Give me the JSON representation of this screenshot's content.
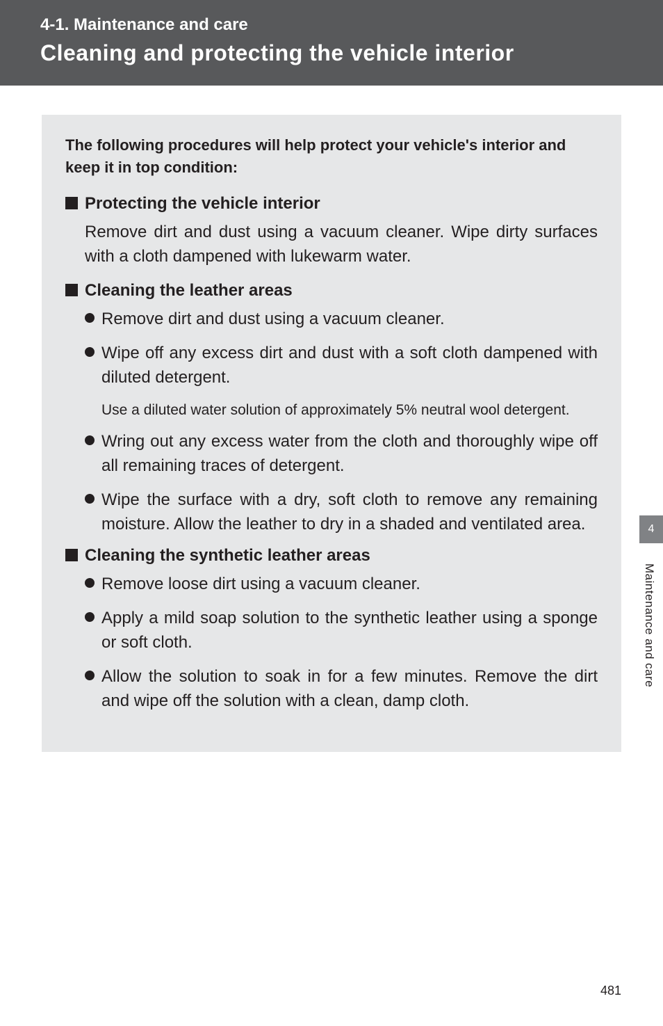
{
  "header": {
    "section_label": "4-1. Maintenance and care",
    "chapter_title": "Cleaning and protecting the vehicle interior"
  },
  "content": {
    "intro": "The following procedures will help protect your vehicle's interior and keep it in top condition:",
    "sections": [
      {
        "title": "Protecting the vehicle interior",
        "body": "Remove dirt and dust using a vacuum cleaner. Wipe dirty surfaces with a cloth dampened with lukewarm water."
      },
      {
        "title": "Cleaning the leather areas",
        "bullets": [
          {
            "text": "Remove dirt and dust using a vacuum cleaner."
          },
          {
            "text": "Wipe off any excess dirt and dust with a soft cloth dampened with diluted detergent.",
            "note": "Use a diluted water solution of approximately 5% neutral wool detergent."
          },
          {
            "text": "Wring out any excess water from the cloth and thoroughly wipe off all remaining traces of detergent."
          },
          {
            "text": "Wipe the surface with a dry, soft cloth to remove any remaining moisture. Allow the leather to dry in a shaded and ventilated area."
          }
        ]
      },
      {
        "title": "Cleaning the synthetic leather areas",
        "bullets": [
          {
            "text": "Remove loose dirt using a vacuum cleaner."
          },
          {
            "text": "Apply a mild soap solution to the synthetic leather using a sponge or soft cloth."
          },
          {
            "text": "Allow the solution to soak in for a few minutes. Remove the dirt and wipe off the solution with a clean, damp cloth."
          }
        ]
      }
    ]
  },
  "sidebar": {
    "tab_number": "4",
    "label": "Maintenance and care"
  },
  "page_number": "481",
  "colors": {
    "header_bg": "#58595b",
    "content_bg": "#e6e7e8",
    "text": "#231f20",
    "tab_bg": "#808285",
    "white": "#ffffff"
  }
}
